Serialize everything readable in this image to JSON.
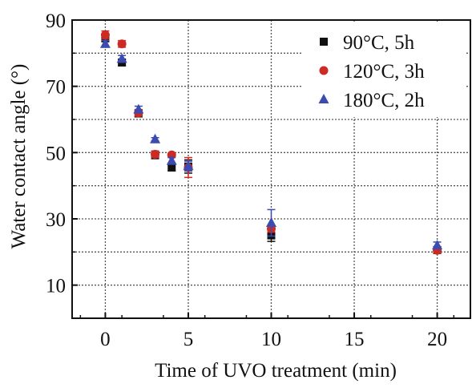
{
  "chart_data": {
    "type": "scatter",
    "xlabel": "Time of UVO treatment (min)",
    "ylabel": "Water contact angle (°)",
    "xlim": [
      -2,
      22
    ],
    "ylim": [
      0,
      90
    ],
    "xticks": [
      0,
      5,
      10,
      15,
      20
    ],
    "yticks": [
      10,
      30,
      50,
      70,
      90
    ],
    "grid": true,
    "legend_position": "top-right",
    "series": [
      {
        "name": "90°C, 5h",
        "marker": "square",
        "color": "#111111",
        "x": [
          0,
          1,
          2,
          3,
          4,
          5,
          10,
          20
        ],
        "y": [
          84.5,
          77.2,
          61.8,
          49.2,
          45.5,
          45.8,
          25.0,
          20.6
        ],
        "err": [
          1.0,
          1.0,
          1.0,
          1.0,
          1.0,
          2.0,
          1.8,
          1.0
        ]
      },
      {
        "name": "120°C, 3h",
        "marker": "circle",
        "color": "#cc2a22",
        "x": [
          0,
          1,
          2,
          3,
          4,
          5,
          10,
          20
        ],
        "y": [
          85.5,
          82.8,
          62.0,
          49.5,
          49.3,
          45.5,
          27.0,
          20.5
        ],
        "err": [
          1.2,
          1.0,
          1.0,
          1.0,
          0.5,
          3.0,
          1.0,
          0.8
        ]
      },
      {
        "name": "180°C, 2h",
        "marker": "triangle",
        "color": "#3b4bb0",
        "x": [
          0,
          1,
          2,
          3,
          4,
          5,
          10,
          20
        ],
        "y": [
          82.8,
          78.3,
          63.0,
          54.0,
          47.5,
          45.9,
          28.8,
          22.0
        ],
        "err": [
          1.0,
          1.0,
          1.0,
          0.5,
          1.0,
          1.5,
          4.0,
          1.0
        ]
      }
    ]
  }
}
